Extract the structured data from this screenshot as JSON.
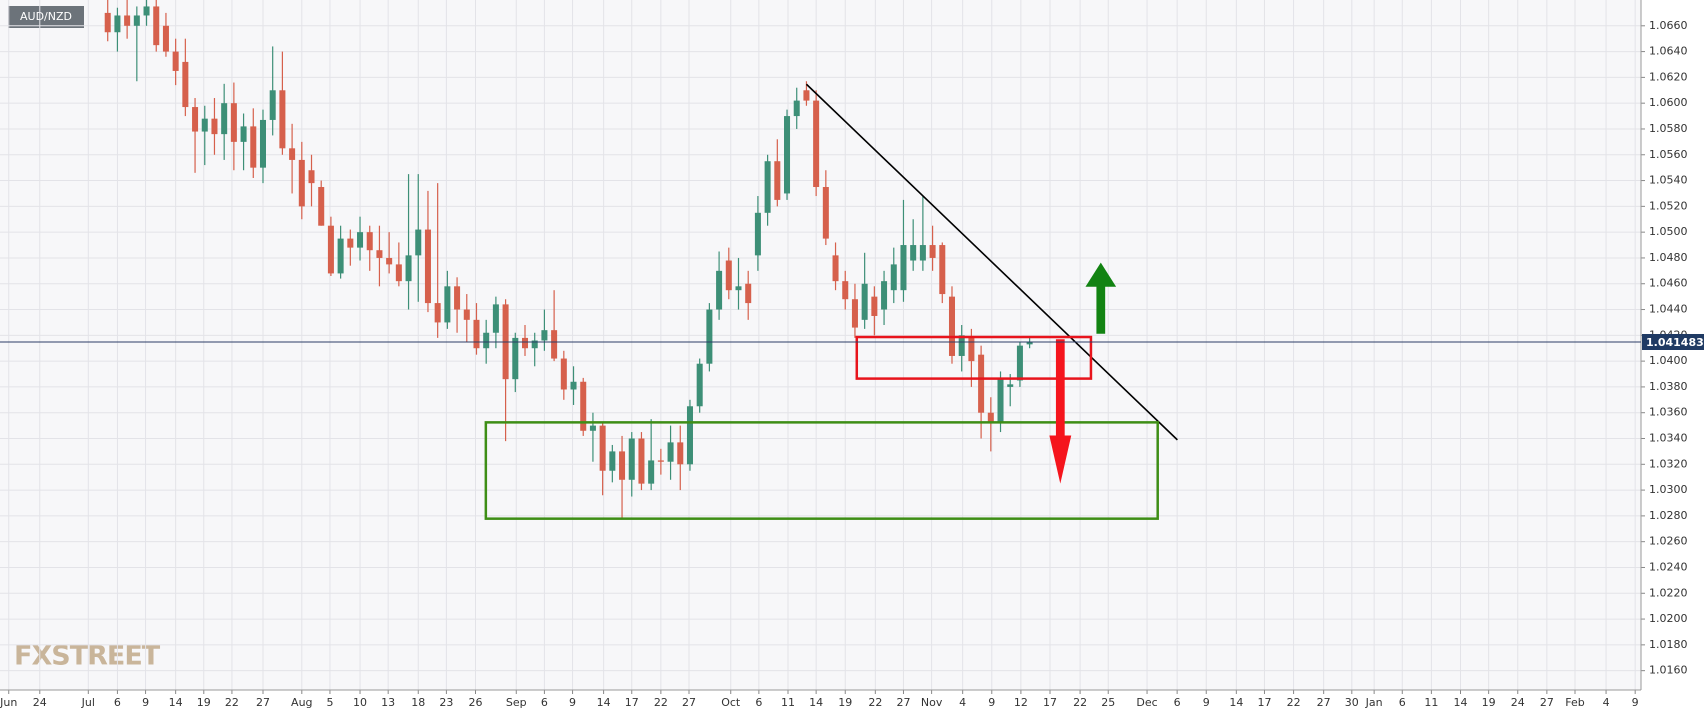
{
  "chart_data": {
    "type": "candlestick",
    "symbol": "AUD/NZD",
    "watermark": "FXSTREET",
    "up_color": "#3d8f77",
    "down_color": "#d6604c",
    "grid": true,
    "last_price": 1.041483,
    "x": [
      -1,
      0,
      1,
      2,
      3,
      4,
      5,
      6,
      7,
      8,
      9,
      10,
      11,
      12,
      13,
      14,
      15,
      16,
      17,
      18,
      19,
      20,
      21,
      22,
      23,
      24,
      25,
      26,
      27,
      28,
      29,
      30,
      31,
      32,
      33,
      34,
      35,
      36,
      37,
      38,
      39,
      40,
      41,
      42,
      43,
      44,
      45,
      46,
      47,
      48,
      49,
      50,
      51,
      52,
      53,
      54,
      55,
      56,
      57,
      58,
      59,
      60,
      61,
      62,
      63,
      64,
      65,
      66,
      67,
      68,
      69,
      70,
      71,
      72,
      73,
      74,
      75,
      76,
      77,
      78,
      79,
      80,
      81,
      82,
      83,
      84,
      85,
      86,
      87,
      88,
      89,
      90,
      91,
      92,
      93,
      94
    ],
    "open": [
      1.067,
      1.0655,
      1.0668,
      1.066,
      1.0668,
      1.0675,
      1.066,
      1.064,
      1.0632,
      1.0597,
      1.0578,
      1.0588,
      1.0576,
      1.06,
      1.057,
      1.0582,
      1.055,
      1.0587,
      1.061,
      1.0565,
      1.0556,
      1.0548,
      1.0535,
      1.0505,
      1.0468,
      1.0495,
      1.0488,
      1.05,
      1.0486,
      1.048,
      1.0475,
      1.0462,
      1.0482,
      1.0502,
      1.0445,
      1.043,
      1.0458,
      1.044,
      1.0432,
      1.041,
      1.0422,
      1.0444,
      1.0386,
      1.0418,
      1.041,
      1.0416,
      1.0424,
      1.0402,
      1.0378,
      1.0384,
      1.0346,
      1.035,
      1.0315,
      1.033,
      1.0308,
      1.034,
      1.0305,
      1.0323,
      1.0322,
      1.0337,
      1.032,
      1.0365,
      1.0398,
      1.044,
      1.0478,
      1.0455,
      1.046,
      1.0482,
      1.0515,
      1.0555,
      1.053,
      1.059,
      1.061,
      1.0602,
      1.0535,
      1.0482,
      1.0462,
      1.0448,
      1.0432,
      1.045,
      1.044,
      1.0455,
      1.0455,
      1.0478,
      1.0478,
      1.049,
      1.049,
      1.045,
      1.0404,
      1.0418,
      1.0405,
      1.036,
      1.0353,
      1.038,
      1.0385,
      1.0413
    ],
    "high": [
      1.068,
      1.0674,
      1.068,
      1.0675,
      1.068,
      1.068,
      1.067,
      1.065,
      1.065,
      1.0604,
      1.0598,
      1.0604,
      1.0615,
      1.0616,
      1.0592,
      1.0596,
      1.0595,
      1.0644,
      1.064,
      1.0584,
      1.057,
      1.056,
      1.054,
      1.0512,
      1.0505,
      1.0502,
      1.0512,
      1.0505,
      1.0505,
      1.05,
      1.0492,
      1.0545,
      1.0545,
      1.0532,
      1.0538,
      1.047,
      1.0465,
      1.0452,
      1.0445,
      1.0432,
      1.045,
      1.0448,
      1.0422,
      1.0428,
      1.0422,
      1.044,
      1.0455,
      1.0408,
      1.0396,
      1.0387,
      1.036,
      1.0352,
      1.0335,
      1.0342,
      1.0345,
      1.0345,
      1.0355,
      1.0332,
      1.035,
      1.035,
      1.037,
      1.0402,
      1.0445,
      1.0485,
      1.0488,
      1.048,
      1.047,
      1.0528,
      1.056,
      1.0572,
      1.0595,
      1.0612,
      1.0617,
      1.061,
      1.0548,
      1.0492,
      1.047,
      1.046,
      1.0484,
      1.0458,
      1.047,
      1.0488,
      1.0525,
      1.051,
      1.0528,
      1.0505,
      1.0492,
      1.0458,
      1.0428,
      1.0425,
      1.0412,
      1.0372,
      1.0392,
      1.039,
      1.0415,
      1.0418
    ],
    "low": [
      1.0648,
      1.064,
      1.065,
      1.0617,
      1.066,
      1.064,
      1.0636,
      1.0614,
      1.059,
      1.0546,
      1.0552,
      1.056,
      1.0556,
      1.0548,
      1.0548,
      1.0542,
      1.0538,
      1.0575,
      1.056,
      1.053,
      1.051,
      1.052,
      1.0505,
      1.0466,
      1.0464,
      1.0474,
      1.0478,
      1.047,
      1.0458,
      1.0468,
      1.0458,
      1.044,
      1.0446,
      1.0438,
      1.0418,
      1.0425,
      1.0422,
      1.0415,
      1.0405,
      1.0398,
      1.041,
      1.0338,
      1.0376,
      1.0404,
      1.0396,
      1.0408,
      1.04,
      1.037,
      1.0366,
      1.0342,
      1.0322,
      1.0296,
      1.0306,
      1.0278,
      1.0295,
      1.03,
      1.03,
      1.0312,
      1.0308,
      1.03,
      1.0315,
      1.036,
      1.0392,
      1.0432,
      1.0448,
      1.044,
      1.0432,
      1.047,
      1.0505,
      1.052,
      1.0525,
      1.058,
      1.0598,
      1.0528,
      1.049,
      1.0455,
      1.044,
      1.0418,
      1.0425,
      1.042,
      1.0428,
      1.0445,
      1.0446,
      1.047,
      1.047,
      1.047,
      1.0445,
      1.0398,
      1.0392,
      1.038,
      1.034,
      1.033,
      1.0345,
      1.0365,
      1.038,
      1.041
    ],
    "close": [
      1.0655,
      1.0668,
      1.066,
      1.0668,
      1.0675,
      1.0645,
      1.064,
      1.0625,
      1.0597,
      1.0578,
      1.0588,
      1.0576,
      1.06,
      1.057,
      1.0582,
      1.055,
      1.0587,
      1.061,
      1.0565,
      1.0556,
      1.052,
      1.0538,
      1.0505,
      1.0468,
      1.0495,
      1.0488,
      1.05,
      1.0486,
      1.048,
      1.0475,
      1.0462,
      1.0482,
      1.0502,
      1.0445,
      1.043,
      1.0458,
      1.044,
      1.0432,
      1.041,
      1.0422,
      1.0444,
      1.0386,
      1.0418,
      1.041,
      1.0416,
      1.0424,
      1.0402,
      1.0378,
      1.0384,
      1.0346,
      1.035,
      1.0315,
      1.033,
      1.0308,
      1.034,
      1.0305,
      1.0323,
      1.0322,
      1.0337,
      1.032,
      1.0365,
      1.0398,
      1.044,
      1.047,
      1.0455,
      1.0458,
      1.0445,
      1.0515,
      1.0555,
      1.0525,
      1.059,
      1.0602,
      1.0602,
      1.0535,
      1.0495,
      1.0462,
      1.0448,
      1.0426,
      1.046,
      1.0435,
      1.0462,
      1.0475,
      1.049,
      1.049,
      1.049,
      1.048,
      1.0452,
      1.0404,
      1.042,
      1.04,
      1.036,
      1.0353,
      1.0387,
      1.0382,
      1.0412,
      1.0415
    ],
    "xlim": [
      -12.1,
      157
    ],
    "xticks": [
      {
        "value": -11.2,
        "label": "Jun"
      },
      {
        "value": -8,
        "label": "24"
      },
      {
        "value": -3,
        "label": "Jul"
      },
      {
        "value": 0,
        "label": "6"
      },
      {
        "value": 2.9,
        "label": "9"
      },
      {
        "value": 6,
        "label": "14"
      },
      {
        "value": 8.9,
        "label": "19"
      },
      {
        "value": 11.8,
        "label": "22"
      },
      {
        "value": 15,
        "label": "27"
      },
      {
        "value": 19,
        "label": "Aug"
      },
      {
        "value": 21.9,
        "label": "5"
      },
      {
        "value": 25,
        "label": "10"
      },
      {
        "value": 27.9,
        "label": "13"
      },
      {
        "value": 31,
        "label": "18"
      },
      {
        "value": 33.9,
        "label": "23"
      },
      {
        "value": 36.9,
        "label": "26"
      },
      {
        "value": 41.1,
        "label": "Sep"
      },
      {
        "value": 44,
        "label": "6"
      },
      {
        "value": 46.9,
        "label": "9"
      },
      {
        "value": 50.1,
        "label": "14"
      },
      {
        "value": 53,
        "label": "17"
      },
      {
        "value": 56,
        "label": "22"
      },
      {
        "value": 58.9,
        "label": "27"
      },
      {
        "value": 63.2,
        "label": "Oct"
      },
      {
        "value": 66.1,
        "label": "6"
      },
      {
        "value": 69.1,
        "label": "11"
      },
      {
        "value": 72,
        "label": "14"
      },
      {
        "value": 75,
        "label": "19"
      },
      {
        "value": 78.1,
        "label": "22"
      },
      {
        "value": 81,
        "label": "27"
      },
      {
        "value": 83.9,
        "label": "Nov"
      },
      {
        "value": 87.1,
        "label": "4"
      },
      {
        "value": 90.1,
        "label": "9"
      },
      {
        "value": 93.1,
        "label": "12"
      },
      {
        "value": 96.1,
        "label": "17"
      },
      {
        "value": 99.2,
        "label": "22"
      },
      {
        "value": 102.1,
        "label": "25"
      },
      {
        "value": 106.1,
        "label": "Dec"
      },
      {
        "value": 109.2,
        "label": "6"
      },
      {
        "value": 112.2,
        "label": "9"
      },
      {
        "value": 115.3,
        "label": "14"
      },
      {
        "value": 118.2,
        "label": "17"
      },
      {
        "value": 121.2,
        "label": "22"
      },
      {
        "value": 124.3,
        "label": "27"
      },
      {
        "value": 127.2,
        "label": "30"
      },
      {
        "value": 129.5,
        "label": "Jan"
      },
      {
        "value": 132.4,
        "label": "6"
      },
      {
        "value": 135.4,
        "label": "11"
      },
      {
        "value": 138.4,
        "label": "14"
      },
      {
        "value": 141.3,
        "label": "19"
      },
      {
        "value": 144.3,
        "label": "24"
      },
      {
        "value": 147.3,
        "label": "27"
      },
      {
        "value": 150.2,
        "label": "Feb"
      },
      {
        "value": 153.4,
        "label": "4"
      },
      {
        "value": 156.4,
        "label": "9"
      }
    ],
    "ylim": [
      1.0145,
      1.068
    ],
    "yticks": [
      {
        "value": 1.016,
        "label": "1.0160"
      },
      {
        "value": 1.018,
        "label": "1.0180"
      },
      {
        "value": 1.02,
        "label": "1.0200"
      },
      {
        "value": 1.022,
        "label": "1.0220"
      },
      {
        "value": 1.024,
        "label": "1.0240"
      },
      {
        "value": 1.026,
        "label": "1.0260"
      },
      {
        "value": 1.028,
        "label": "1.0280"
      },
      {
        "value": 1.03,
        "label": "1.0300"
      },
      {
        "value": 1.032,
        "label": "1.0320"
      },
      {
        "value": 1.034,
        "label": "1.0340"
      },
      {
        "value": 1.036,
        "label": "1.0360"
      },
      {
        "value": 1.038,
        "label": "1.0380"
      },
      {
        "value": 1.04,
        "label": "1.0400"
      },
      {
        "value": 1.042,
        "label": "1.0420"
      },
      {
        "value": 1.044,
        "label": "1.0440"
      },
      {
        "value": 1.046,
        "label": "1.0460"
      },
      {
        "value": 1.048,
        "label": "1.0480"
      },
      {
        "value": 1.05,
        "label": "1.0500"
      },
      {
        "value": 1.052,
        "label": "1.0520"
      },
      {
        "value": 1.054,
        "label": "1.0540"
      },
      {
        "value": 1.056,
        "label": "1.0560"
      },
      {
        "value": 1.058,
        "label": "1.0580"
      },
      {
        "value": 1.06,
        "label": "1.0600"
      },
      {
        "value": 1.062,
        "label": "1.0620"
      },
      {
        "value": 1.064,
        "label": "1.0640"
      },
      {
        "value": 1.066,
        "label": "1.0660"
      }
    ]
  }
}
